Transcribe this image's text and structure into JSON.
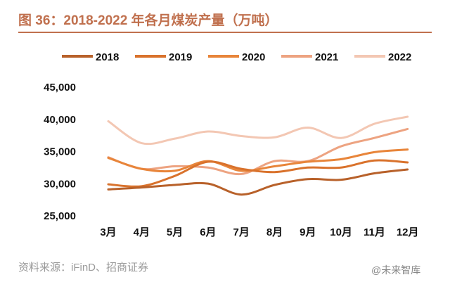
{
  "chart_data": {
    "type": "line",
    "title": "图 36：2018-2022 年各月煤炭产量（万吨）",
    "categories": [
      "3月",
      "4月",
      "5月",
      "6月",
      "7月",
      "8月",
      "9月",
      "10月",
      "11月",
      "12月"
    ],
    "ylim": [
      25000,
      45000
    ],
    "yticks": [
      "25,000",
      "30,000",
      "35,000",
      "40,000",
      "45,000"
    ],
    "grid": false,
    "legend": "top",
    "series": [
      {
        "name": "2018",
        "color": "#b8612a",
        "values": [
          29000,
          29300,
          29700,
          29900,
          28200,
          29700,
          30600,
          30500,
          31500,
          32100
        ]
      },
      {
        "name": "2019",
        "color": "#d9722c",
        "values": [
          29800,
          29500,
          31100,
          33300,
          32200,
          31700,
          32400,
          32400,
          33500,
          33200
        ]
      },
      {
        "name": "2020",
        "color": "#e8853a",
        "values": [
          33900,
          32200,
          31900,
          33400,
          31900,
          32600,
          33300,
          33700,
          34800,
          35200
        ]
      },
      {
        "name": "2021",
        "color": "#eda381",
        "values": [
          34000,
          32200,
          32600,
          32400,
          31400,
          33400,
          33400,
          35700,
          37000,
          38400
        ]
      },
      {
        "name": "2022",
        "color": "#f3c7b3",
        "values": [
          39600,
          36200,
          36900,
          38000,
          37300,
          37100,
          38600,
          37000,
          39200,
          40300
        ]
      }
    ]
  },
  "footer": {
    "source": "资料来源：iFinD、招商证券",
    "watermark": "@未来智库"
  }
}
